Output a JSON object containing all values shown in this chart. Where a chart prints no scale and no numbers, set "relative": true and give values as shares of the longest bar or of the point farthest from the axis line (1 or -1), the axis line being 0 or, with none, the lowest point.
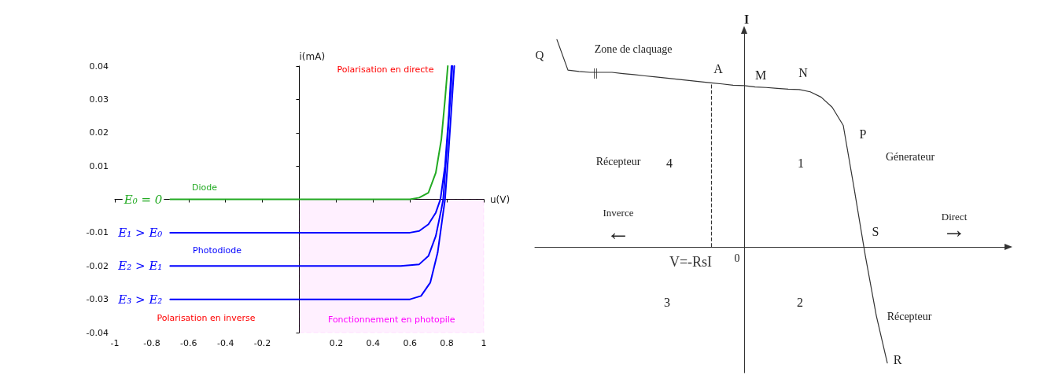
{
  "chart_data": [
    {
      "type": "line",
      "xlabel": "u(V)",
      "ylabel": "i(mA)",
      "xlim": [
        -1,
        1
      ],
      "ylim": [
        -0.04,
        0.04
      ],
      "xticks": [
        -1,
        -0.8,
        -0.6,
        -0.4,
        -0.2,
        0.2,
        0.4,
        0.6,
        0.8,
        1
      ],
      "yticks": [
        -0.04,
        -0.03,
        -0.02,
        -0.01,
        0.01,
        0.02,
        0.03,
        0.04
      ],
      "marker": "none",
      "series": [
        {
          "name": "E₀ = 0",
          "color": "#22aa22",
          "x": [
            -0.7,
            0.6,
            0.65,
            0.7,
            0.74,
            0.77,
            0.79,
            0.805
          ],
          "values": [
            0,
            0,
            0.0005,
            0.002,
            0.008,
            0.018,
            0.03,
            0.04
          ]
        },
        {
          "name": "E₁ > E₀",
          "color": "#0000ff",
          "x": [
            -0.7,
            0.6,
            0.65,
            0.7,
            0.74,
            0.765,
            0.79,
            0.81,
            0.825
          ],
          "values": [
            -0.01,
            -0.01,
            -0.0095,
            -0.0075,
            -0.004,
            0,
            0.01,
            0.025,
            0.04
          ]
        },
        {
          "name": "E₂ > E₁",
          "color": "#0000ff",
          "x": [
            -0.7,
            0.55,
            0.65,
            0.7,
            0.74,
            0.77,
            0.78,
            0.8,
            0.83
          ],
          "values": [
            -0.02,
            -0.02,
            -0.0195,
            -0.017,
            -0.011,
            -0.003,
            0,
            0.015,
            0.04
          ]
        },
        {
          "name": "E₃ > E₂",
          "color": "#0000ff",
          "x": [
            -0.7,
            0.6,
            0.66,
            0.71,
            0.75,
            0.775,
            0.79,
            0.81,
            0.84
          ],
          "values": [
            -0.03,
            -0.03,
            -0.029,
            -0.025,
            -0.016,
            -0.006,
            0,
            0.015,
            0.04
          ]
        }
      ],
      "bands": [
        {
          "axis": "x",
          "from": 0,
          "to": 1,
          "label": "Fonctionnement en photopile",
          "color": "#ff00ff"
        }
      ],
      "annotations": [
        "Polarisation en directe",
        "Diode",
        "Photodiode",
        "Polarisation en inverse"
      ]
    },
    {
      "type": "line",
      "relative": true,
      "ylabel": "I",
      "marker": "none",
      "categories": [
        null,
        null,
        null,
        null,
        null,
        null,
        null,
        null,
        null,
        null,
        null,
        null,
        null,
        null,
        null,
        null,
        null,
        null,
        null,
        null,
        null,
        null,
        null,
        null,
        null,
        null,
        null,
        null,
        null,
        null,
        null,
        null,
        null,
        null,
        null,
        null,
        null,
        null,
        null,
        null,
        null,
        null,
        null,
        null
      ],
      "series": [
        {
          "color": "#333333",
          "values": [
            null,
            null,
            1.0,
            0.853,
            0.846,
            0.842,
            0.842,
            0.842,
            0.836,
            0.831,
            0.825,
            0.82,
            0.814,
            0.808,
            0.803,
            0.797,
            0.791,
            0.786,
            0.78,
            0.778,
            0.771,
            0.769,
            0.765,
            0.761,
            0.759,
            0.748,
            0.722,
            0.673,
            0.586,
            0.278,
            -0.041,
            -0.331,
            -0.56,
            null,
            null,
            null,
            null,
            null,
            null,
            null,
            null,
            null,
            null,
            null
          ]
        }
      ],
      "ref_lines": [
        {
          "axis": "x",
          "label": "V=-RsI",
          "line_style": "dashed"
        }
      ],
      "annotations": [
        "Q",
        "Zone de claquage",
        "||",
        "A",
        "M",
        "N",
        "P",
        "Génerateur",
        "Récepteur",
        "4",
        "1",
        "Inverce",
        "←",
        "Direct",
        "→",
        "S",
        "0",
        "3",
        "2",
        "Récepteur",
        "R"
      ]
    }
  ]
}
